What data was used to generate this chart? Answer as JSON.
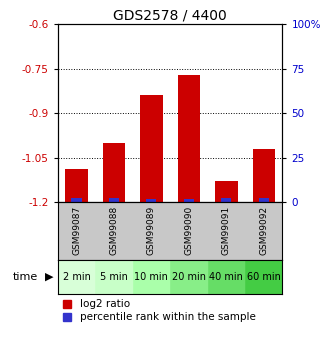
{
  "title": "GDS2578 / 4400",
  "samples": [
    "GSM99087",
    "GSM99088",
    "GSM99089",
    "GSM99090",
    "GSM99091",
    "GSM99092"
  ],
  "time_labels": [
    "2 min",
    "5 min",
    "10 min",
    "20 min",
    "40 min",
    "60 min"
  ],
  "log2_ratio": [
    -1.09,
    -1.0,
    -0.84,
    -0.77,
    -1.13,
    -1.02
  ],
  "percentile_rank": [
    2.0,
    2.5,
    1.5,
    1.5,
    2.0,
    2.5
  ],
  "ylim_left": [
    -1.2,
    -0.6
  ],
  "ylim_right": [
    0,
    100
  ],
  "yticks_left": [
    -1.2,
    -1.05,
    -0.9,
    -0.75,
    -0.6
  ],
  "yticks_right": [
    0,
    25,
    50,
    75,
    100
  ],
  "bar_color_red": "#cc0000",
  "bar_color_blue": "#3333cc",
  "bg_plot": "#ffffff",
  "bg_gsm": "#c8c8c8",
  "time_colors": [
    "#d8ffd8",
    "#c8ffc8",
    "#aaffaa",
    "#88ee88",
    "#66dd66",
    "#44cc44"
  ],
  "title_fontsize": 10,
  "tick_fontsize": 7.5,
  "gsm_fontsize": 6.5,
  "time_fontsize": 7,
  "legend_fontsize": 7.5,
  "axis_color_left": "#cc0000",
  "axis_color_right": "#0000cc"
}
